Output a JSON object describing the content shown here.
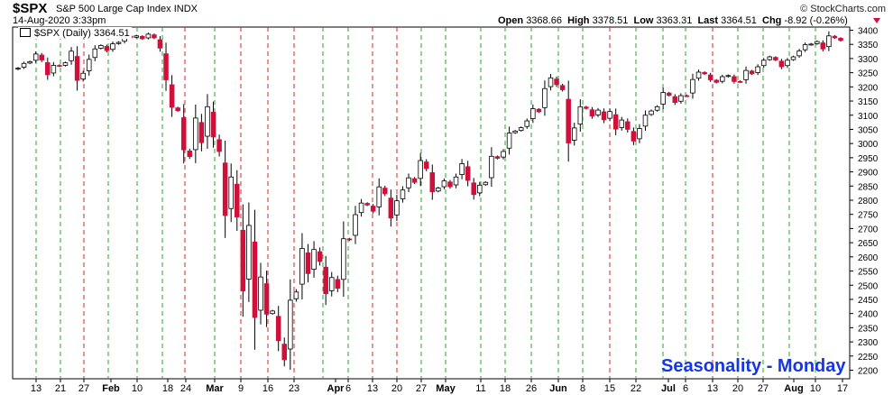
{
  "header": {
    "symbol": "$SPX",
    "description": "S&P 500 Large Cap Index",
    "exchange": "INDX",
    "datetime": "14-Aug-2020 3:33pm",
    "credit": "© StockCharts.com",
    "open_label": "Open",
    "open": "3368.66",
    "high_label": "High",
    "high": "3378.51",
    "low_label": "Low",
    "low": "3363.31",
    "last_label": "Last",
    "last": "3364.51",
    "chg_label": "Chg",
    "chg": "-8.92 (-0.26%)"
  },
  "legend": "$SPX (Daily) 3364.51",
  "chart_data": {
    "type": "candlestick",
    "title": "Seasonality - Monday",
    "ylim": [
      2180,
      3410
    ],
    "yticks": [
      2200,
      2250,
      2300,
      2350,
      2400,
      2450,
      2500,
      2550,
      2600,
      2650,
      2700,
      2750,
      2800,
      2850,
      2900,
      2950,
      3000,
      3050,
      3100,
      3150,
      3200,
      3250,
      3300,
      3350,
      3400
    ],
    "xticks": [
      "13",
      "21",
      "27",
      "Feb",
      "10",
      "18",
      "24",
      "Mar",
      "9",
      "16",
      "23",
      "Apr",
      "6",
      "13",
      "20",
      "27",
      "May",
      "11",
      "18",
      "26",
      "Jun",
      "8",
      "15",
      "22",
      "Jul",
      "6",
      "13",
      "20",
      "27",
      "Aug",
      "10",
      "17"
    ],
    "monday_lines": {
      "green": 23,
      "red": 7
    },
    "colors": {
      "up": "#ffffff",
      "down": "#d0103a",
      "green_line": "#2aa52a",
      "red_line": "#d42525"
    },
    "closes": [
      3266,
      3283,
      3289,
      3316,
      3295,
      3243,
      3276,
      3274,
      3285,
      3326,
      3223,
      3248,
      3297,
      3334,
      3346,
      3328,
      3352,
      3357,
      3380,
      3374,
      3380,
      3370,
      3386,
      3373,
      3337,
      3225,
      3128,
      3116,
      2978,
      2954,
      3090,
      3003,
      3130,
      3023,
      2972,
      2746,
      2882,
      2741,
      2480,
      2711,
      2386,
      2529,
      2398,
      2409,
      2304,
      2237,
      2447,
      2476,
      2630,
      2541,
      2626,
      2584,
      2470,
      2527,
      2489,
      2664,
      2660,
      2749,
      2790,
      2783,
      2761,
      2847,
      2823,
      2737,
      2798,
      2836,
      2879,
      2863,
      2940,
      2912,
      2830,
      2843,
      2868,
      2848,
      2882,
      2929,
      2870,
      2820,
      2853,
      2863,
      2955,
      2948,
      2972,
      3037,
      3044,
      3056,
      3080,
      3123,
      3112,
      3194,
      3232,
      3208,
      3190,
      3002,
      3055,
      3130,
      3124,
      3097,
      3118,
      3084,
      3113,
      3051,
      3083,
      3050,
      3009,
      3053,
      3100,
      3115,
      3130,
      3180,
      3170,
      3145,
      3169,
      3168,
      3226,
      3252,
      3246,
      3225,
      3216,
      3236,
      3240,
      3219,
      3218,
      3258,
      3246,
      3271,
      3294,
      3306,
      3295,
      3271,
      3294,
      3306,
      3327,
      3349,
      3351,
      3360,
      3334,
      3380,
      3373,
      3364
    ]
  }
}
